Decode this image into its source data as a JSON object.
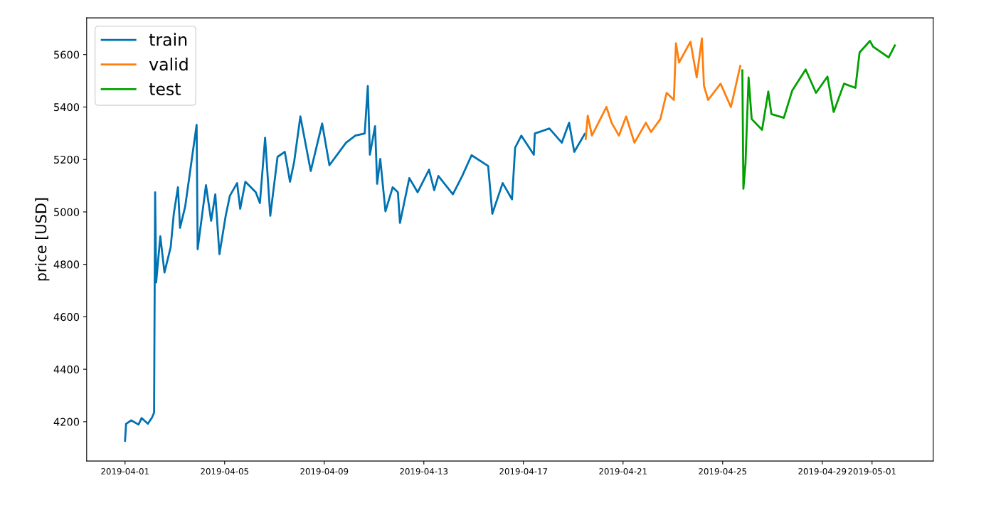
{
  "chart_data": {
    "type": "line",
    "ylabel": "price [USD]",
    "legend": "top left",
    "grid": false,
    "marker": "none",
    "line_style": "solid",
    "xlim": [
      "2019-03-30T11:00",
      "2019-05-03T11:00"
    ],
    "ylim": [
      4050,
      5740
    ],
    "xticks": [
      "2019-04-01",
      "2019-04-05",
      "2019-04-09",
      "2019-04-13",
      "2019-04-17",
      "2019-04-21",
      "2019-04-25",
      "2019-04-29",
      "2019-05-01"
    ],
    "yticks": [
      4200,
      4400,
      4600,
      4800,
      5000,
      5200,
      5400,
      5600
    ],
    "series": [
      {
        "name": "train",
        "color": "#0072b2",
        "x": [
          "2019-04-01T00:00",
          "2019-04-01T01:00",
          "2019-04-01T06:00",
          "2019-04-01T13:00",
          "2019-04-01T16:00",
          "2019-04-01T22:00",
          "2019-04-02T02:00",
          "2019-04-02T04:00",
          "2019-04-02T05:00",
          "2019-04-02T06:00",
          "2019-04-02T10:00",
          "2019-04-02T14:00",
          "2019-04-02T20:00",
          "2019-04-02T23:00",
          "2019-04-03T03:00",
          "2019-04-03T05:00",
          "2019-04-03T10:00",
          "2019-04-03T16:00",
          "2019-04-03T21:00",
          "2019-04-03T22:00",
          "2019-04-04T06:00",
          "2019-04-04T11:00",
          "2019-04-04T15:00",
          "2019-04-04T19:00",
          "2019-04-05T01:00",
          "2019-04-05T05:00",
          "2019-04-05T12:00",
          "2019-04-05T15:00",
          "2019-04-05T20:00",
          "2019-04-06T06:00",
          "2019-04-06T10:00",
          "2019-04-06T15:00",
          "2019-04-06T20:00",
          "2019-04-07T03:00",
          "2019-04-07T10:00",
          "2019-04-07T15:00",
          "2019-04-07T19:00",
          "2019-04-08T01:00",
          "2019-04-08T11:00",
          "2019-04-08T22:00",
          "2019-04-09T05:00",
          "2019-04-09T21:00",
          "2019-04-10T06:00",
          "2019-04-10T15:00",
          "2019-04-10T18:00",
          "2019-04-10T20:00",
          "2019-04-11T01:00",
          "2019-04-11T03:00",
          "2019-04-11T06:00",
          "2019-04-11T11:00",
          "2019-04-11T18:00",
          "2019-04-11T23:00",
          "2019-04-12T01:00",
          "2019-04-12T10:00",
          "2019-04-12T18:00",
          "2019-04-13T05:00",
          "2019-04-13T10:00",
          "2019-04-13T14:00",
          "2019-04-14T04:00",
          "2019-04-14T13:00",
          "2019-04-14T22:00",
          "2019-04-15T14:00",
          "2019-04-15T18:00",
          "2019-04-16T04:00",
          "2019-04-16T13:00",
          "2019-04-16T16:00",
          "2019-04-16T22:00",
          "2019-04-17T10:00",
          "2019-04-17T11:00",
          "2019-04-18T01:00",
          "2019-04-18T13:00",
          "2019-04-18T20:00",
          "2019-04-19T01:00",
          "2019-04-19T11:00"
        ],
        "values": [
          4127,
          4192,
          4205,
          4189,
          4214,
          4192,
          4216,
          4235,
          5075,
          4731,
          4907,
          4769,
          4866,
          4993,
          5094,
          4939,
          5021,
          5191,
          5332,
          4858,
          5102,
          4966,
          5067,
          4839,
          4985,
          5061,
          5110,
          5012,
          5115,
          5075,
          5034,
          5283,
          4985,
          5210,
          5229,
          5115,
          5191,
          5364,
          5156,
          5337,
          5178,
          5264,
          5291,
          5299,
          5480,
          5218,
          5327,
          5107,
          5202,
          5002,
          5094,
          5075,
          4958,
          5129,
          5075,
          5161,
          5083,
          5137,
          5067,
          5137,
          5216,
          5175,
          4993,
          5110,
          5048,
          5245,
          5291,
          5218,
          5299,
          5318,
          5264,
          5340,
          5229,
          5297
        ]
      },
      {
        "name": "valid",
        "color": "#ff7f0e",
        "x": [
          "2019-04-19T12:00",
          "2019-04-19T14:00",
          "2019-04-19T18:00",
          "2019-04-20T08:00",
          "2019-04-20T13:00",
          "2019-04-20T20:00",
          "2019-04-21T03:00",
          "2019-04-21T11:00",
          "2019-04-21T22:00",
          "2019-04-22T03:00",
          "2019-04-22T12:00",
          "2019-04-22T18:00",
          "2019-04-23T01:00",
          "2019-04-23T03:00",
          "2019-04-23T06:00",
          "2019-04-23T17:00",
          "2019-04-23T23:00",
          "2019-04-24T04:00",
          "2019-04-24T06:00",
          "2019-04-24T10:00",
          "2019-04-24T22:00",
          "2019-04-25T08:00",
          "2019-04-25T17:00"
        ],
        "values": [
          5278,
          5367,
          5291,
          5400,
          5340,
          5291,
          5364,
          5264,
          5340,
          5305,
          5354,
          5454,
          5427,
          5643,
          5570,
          5649,
          5513,
          5662,
          5481,
          5427,
          5489,
          5400,
          5557
        ]
      },
      {
        "name": "test",
        "color": "#00a000",
        "x": [
          "2019-04-25T19:00",
          "2019-04-25T20:00",
          "2019-04-25T22:00",
          "2019-04-26T01:00",
          "2019-04-26T04:00",
          "2019-04-26T14:00",
          "2019-04-26T20:00",
          "2019-04-26T23:00",
          "2019-04-27T11:00",
          "2019-04-27T19:00",
          "2019-04-28T08:00",
          "2019-04-28T18:00",
          "2019-04-29T05:00",
          "2019-04-29T11:00",
          "2019-04-29T21:00",
          "2019-04-30T08:00",
          "2019-04-30T12:00",
          "2019-04-30T22:00",
          "2019-05-01T01:00",
          "2019-05-01T16:00",
          "2019-05-01T22:00"
        ],
        "values": [
          5540,
          5088,
          5183,
          5513,
          5354,
          5313,
          5459,
          5373,
          5359,
          5462,
          5543,
          5454,
          5516,
          5381,
          5489,
          5473,
          5608,
          5652,
          5630,
          5589,
          5635
        ]
      }
    ]
  }
}
